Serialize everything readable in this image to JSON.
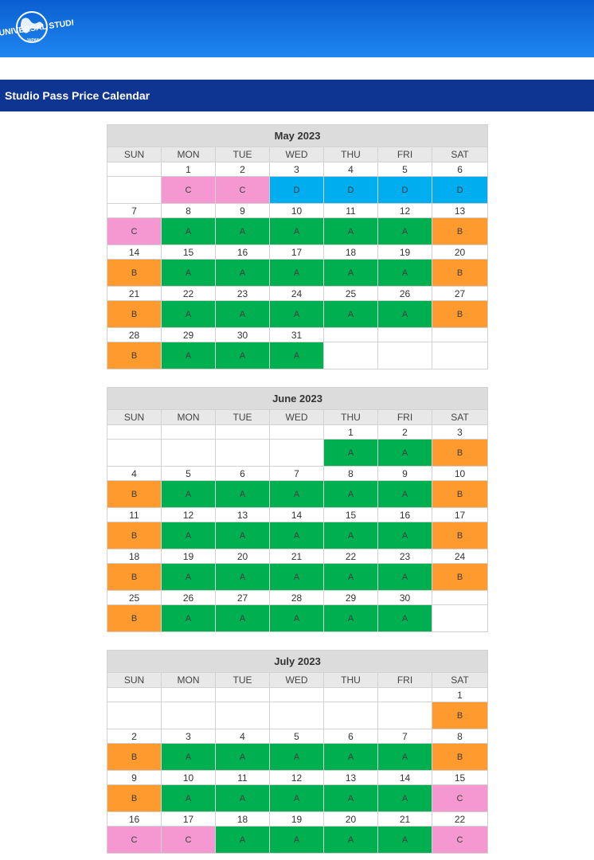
{
  "header": {
    "logo_text": "UNIVERSAL STUDIOS",
    "logo_subtext": "JAPAN"
  },
  "page_title": "Studio Pass Price Calendar",
  "weekdays": [
    "SUN",
    "MON",
    "TUE",
    "WED",
    "THU",
    "FRI",
    "SAT"
  ],
  "colors": {
    "A": "#00b050",
    "B": "#ff9a2e",
    "C": "#f598d2",
    "D": "#00aeef"
  },
  "months": [
    {
      "title": "May 2023",
      "weeks": [
        [
          null,
          {
            "d": "1",
            "p": "C"
          },
          {
            "d": "2",
            "p": "C"
          },
          {
            "d": "3",
            "p": "D"
          },
          {
            "d": "4",
            "p": "D"
          },
          {
            "d": "5",
            "p": "D"
          },
          {
            "d": "6",
            "p": "D"
          }
        ],
        [
          {
            "d": "7",
            "p": "C"
          },
          {
            "d": "8",
            "p": "A"
          },
          {
            "d": "9",
            "p": "A"
          },
          {
            "d": "10",
            "p": "A"
          },
          {
            "d": "11",
            "p": "A"
          },
          {
            "d": "12",
            "p": "A"
          },
          {
            "d": "13",
            "p": "B"
          }
        ],
        [
          {
            "d": "14",
            "p": "B"
          },
          {
            "d": "15",
            "p": "A"
          },
          {
            "d": "16",
            "p": "A"
          },
          {
            "d": "17",
            "p": "A"
          },
          {
            "d": "18",
            "p": "A"
          },
          {
            "d": "19",
            "p": "A"
          },
          {
            "d": "20",
            "p": "B"
          }
        ],
        [
          {
            "d": "21",
            "p": "B"
          },
          {
            "d": "22",
            "p": "A"
          },
          {
            "d": "23",
            "p": "A"
          },
          {
            "d": "24",
            "p": "A"
          },
          {
            "d": "25",
            "p": "A"
          },
          {
            "d": "26",
            "p": "A"
          },
          {
            "d": "27",
            "p": "B"
          }
        ],
        [
          {
            "d": "28",
            "p": "B"
          },
          {
            "d": "29",
            "p": "A"
          },
          {
            "d": "30",
            "p": "A"
          },
          {
            "d": "31",
            "p": "A"
          },
          null,
          null,
          null
        ]
      ]
    },
    {
      "title": "June 2023",
      "weeks": [
        [
          null,
          null,
          null,
          null,
          {
            "d": "1",
            "p": "A"
          },
          {
            "d": "2",
            "p": "A"
          },
          {
            "d": "3",
            "p": "B"
          }
        ],
        [
          {
            "d": "4",
            "p": "B"
          },
          {
            "d": "5",
            "p": "A"
          },
          {
            "d": "6",
            "p": "A"
          },
          {
            "d": "7",
            "p": "A"
          },
          {
            "d": "8",
            "p": "A"
          },
          {
            "d": "9",
            "p": "A"
          },
          {
            "d": "10",
            "p": "B"
          }
        ],
        [
          {
            "d": "11",
            "p": "B"
          },
          {
            "d": "12",
            "p": "A"
          },
          {
            "d": "13",
            "p": "A"
          },
          {
            "d": "14",
            "p": "A"
          },
          {
            "d": "15",
            "p": "A"
          },
          {
            "d": "16",
            "p": "A"
          },
          {
            "d": "17",
            "p": "B"
          }
        ],
        [
          {
            "d": "18",
            "p": "B"
          },
          {
            "d": "19",
            "p": "A"
          },
          {
            "d": "20",
            "p": "A"
          },
          {
            "d": "21",
            "p": "A"
          },
          {
            "d": "22",
            "p": "A"
          },
          {
            "d": "23",
            "p": "A"
          },
          {
            "d": "24",
            "p": "B"
          }
        ],
        [
          {
            "d": "25",
            "p": "B"
          },
          {
            "d": "26",
            "p": "A"
          },
          {
            "d": "27",
            "p": "A"
          },
          {
            "d": "28",
            "p": "A"
          },
          {
            "d": "29",
            "p": "A"
          },
          {
            "d": "30",
            "p": "A"
          },
          null
        ]
      ]
    },
    {
      "title": "July 2023",
      "weeks": [
        [
          null,
          null,
          null,
          null,
          null,
          null,
          {
            "d": "1",
            "p": "B"
          }
        ],
        [
          {
            "d": "2",
            "p": "B"
          },
          {
            "d": "3",
            "p": "A"
          },
          {
            "d": "4",
            "p": "A"
          },
          {
            "d": "5",
            "p": "A"
          },
          {
            "d": "6",
            "p": "A"
          },
          {
            "d": "7",
            "p": "A"
          },
          {
            "d": "8",
            "p": "B"
          }
        ],
        [
          {
            "d": "9",
            "p": "B"
          },
          {
            "d": "10",
            "p": "A"
          },
          {
            "d": "11",
            "p": "A"
          },
          {
            "d": "12",
            "p": "A"
          },
          {
            "d": "13",
            "p": "A"
          },
          {
            "d": "14",
            "p": "A"
          },
          {
            "d": "15",
            "p": "C"
          }
        ],
        [
          {
            "d": "16",
            "p": "C"
          },
          {
            "d": "17",
            "p": "C"
          },
          {
            "d": "18",
            "p": "A"
          },
          {
            "d": "19",
            "p": "A"
          },
          {
            "d": "20",
            "p": "A"
          },
          {
            "d": "21",
            "p": "A"
          },
          {
            "d": "22",
            "p": "C"
          }
        ]
      ]
    }
  ]
}
